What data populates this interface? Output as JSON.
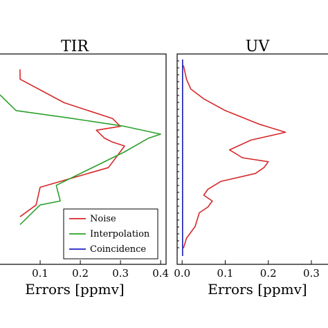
{
  "chart_data": [
    {
      "type": "line",
      "title": "TIR",
      "xlabel": "Errors [ppmv]",
      "ylabel": "",
      "xlim": [
        0,
        0.41
      ],
      "xticks": [
        "0.1",
        "0.2",
        "0.3",
        "0.4"
      ],
      "xtick_values": [
        0.1,
        0.2,
        0.3,
        0.4
      ],
      "legend": {
        "placement": "lower-right",
        "entries": [
          "Noise",
          "Interpolation",
          "Coincidence"
        ]
      },
      "series": [
        {
          "name": "Noise",
          "color": "#d62728",
          "points": [
            [
              0.05,
              0.05
            ],
            [
              0.05,
              0.1
            ],
            [
              0.16,
              0.22
            ],
            [
              0.28,
              0.3
            ],
            [
              0.3,
              0.34
            ],
            [
              0.24,
              0.36
            ],
            [
              0.26,
              0.4
            ],
            [
              0.28,
              0.42
            ],
            [
              0.31,
              0.44
            ],
            [
              0.27,
              0.55
            ],
            [
              0.1,
              0.65
            ],
            [
              0.09,
              0.74
            ],
            [
              0.05,
              0.8
            ]
          ]
        },
        {
          "name": "Interpolation",
          "color": "#2ca02c",
          "points": [
            [
              0.0,
              0.18
            ],
            [
              0.04,
              0.26
            ],
            [
              0.18,
              0.3
            ],
            [
              0.31,
              0.34
            ],
            [
              0.4,
              0.38
            ],
            [
              0.37,
              0.4
            ],
            [
              0.31,
              0.47
            ],
            [
              0.14,
              0.64
            ],
            [
              0.15,
              0.72
            ],
            [
              0.1,
              0.74
            ],
            [
              0.05,
              0.84
            ]
          ]
        }
      ]
    },
    {
      "type": "line",
      "title": "UV",
      "xlabel": "Errors [ppmv]",
      "ylabel": "",
      "xlim": [
        -0.01,
        0.345
      ],
      "xticks": [
        "0.0",
        "0.1",
        "0.2",
        "0.3"
      ],
      "xtick_values": [
        0.0,
        0.1,
        0.2,
        0.3
      ],
      "series": [
        {
          "name": "Noise",
          "color": "#d62728",
          "points": [
            [
              0.003,
              0.03
            ],
            [
              0.01,
              0.1
            ],
            [
              0.02,
              0.15
            ],
            [
              0.05,
              0.2
            ],
            [
              0.1,
              0.26
            ],
            [
              0.18,
              0.33
            ],
            [
              0.24,
              0.37
            ],
            [
              0.16,
              0.41
            ],
            [
              0.11,
              0.46
            ],
            [
              0.14,
              0.5
            ],
            [
              0.2,
              0.52
            ],
            [
              0.19,
              0.55
            ],
            [
              0.17,
              0.58
            ],
            [
              0.09,
              0.62
            ],
            [
              0.06,
              0.66
            ],
            [
              0.05,
              0.69
            ],
            [
              0.07,
              0.72
            ],
            [
              0.06,
              0.75
            ],
            [
              0.04,
              0.78
            ],
            [
              0.03,
              0.85
            ],
            [
              0.01,
              0.91
            ],
            [
              0.003,
              0.96
            ]
          ]
        },
        {
          "name": "Interpolation",
          "color": "#2ca02c",
          "points": [
            [
              0.001,
              0.0
            ],
            [
              0.001,
              1.0
            ]
          ]
        },
        {
          "name": "Coincidence",
          "color": "#1f1fbf",
          "points": [
            [
              0.001,
              0.0
            ],
            [
              0.001,
              1.0
            ]
          ]
        }
      ]
    }
  ]
}
